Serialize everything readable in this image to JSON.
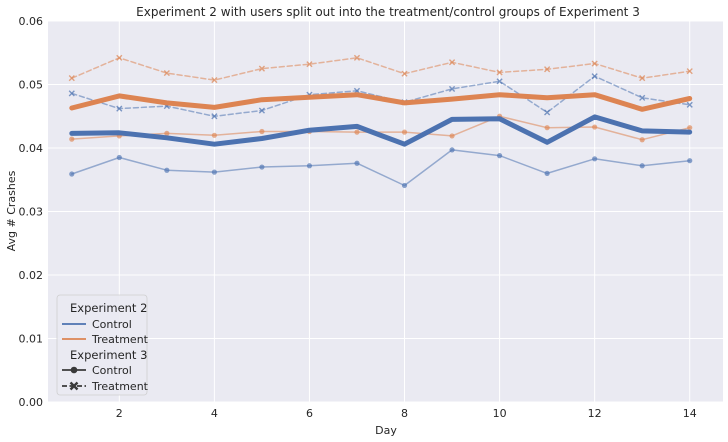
{
  "chart_data": {
    "type": "line",
    "title": "Experiment 2 with users split out into the treatment/control groups of Experiment 3",
    "xlabel": "Day",
    "ylabel": "Avg # Crashes",
    "xlim": [
      0.5,
      14.7
    ],
    "ylim": [
      0,
      0.06
    ],
    "x": [
      1,
      2,
      3,
      4,
      5,
      6,
      7,
      8,
      9,
      10,
      11,
      12,
      13,
      14
    ],
    "x_ticks": [
      2,
      4,
      6,
      8,
      10,
      12,
      14
    ],
    "x_tick_labels": [
      "2",
      "4",
      "6",
      "8",
      "10",
      "12",
      "14"
    ],
    "y_ticks": [
      0,
      0.01,
      0.02,
      0.03,
      0.04,
      0.05,
      0.06
    ],
    "y_tick_labels": [
      "0.00",
      "0.01",
      "0.02",
      "0.03",
      "0.04",
      "0.05",
      "0.06"
    ],
    "grid": true,
    "background": "#eaeaf2",
    "colors": {
      "control": "#4c72b0",
      "treatment": "#dd8452"
    },
    "series": [
      {
        "exp2_group": "Control",
        "exp3_group": "All",
        "style": "thick",
        "values": [
          0.0423,
          0.0424,
          0.0416,
          0.0406,
          0.0415,
          0.0428,
          0.0434,
          0.0406,
          0.0445,
          0.0446,
          0.0409,
          0.0449,
          0.0427,
          0.0425
        ]
      },
      {
        "exp2_group": "Treatment",
        "exp3_group": "All",
        "style": "thick",
        "values": [
          0.0463,
          0.0482,
          0.0471,
          0.0464,
          0.0476,
          0.048,
          0.0484,
          0.0471,
          0.0477,
          0.0484,
          0.0479,
          0.0484,
          0.0461,
          0.0478
        ]
      },
      {
        "exp2_group": "Control",
        "exp3_group": "Control",
        "style": "solid-dot",
        "values": [
          0.0359,
          0.0385,
          0.0365,
          0.0362,
          0.037,
          0.0372,
          0.0376,
          0.0341,
          0.0397,
          0.0388,
          0.036,
          0.0383,
          0.0372,
          0.038
        ]
      },
      {
        "exp2_group": "Treatment",
        "exp3_group": "Control",
        "style": "solid-dot",
        "values": [
          0.0414,
          0.0419,
          0.0423,
          0.042,
          0.0426,
          0.0426,
          0.0425,
          0.0425,
          0.0419,
          0.045,
          0.0432,
          0.0433,
          0.0413,
          0.0432
        ]
      },
      {
        "exp2_group": "Control",
        "exp3_group": "Treatment",
        "style": "dashed-x",
        "values": [
          0.0486,
          0.0462,
          0.0466,
          0.045,
          0.0459,
          0.0484,
          0.049,
          0.0472,
          0.0493,
          0.0505,
          0.0456,
          0.0513,
          0.0479,
          0.0468
        ]
      },
      {
        "exp2_group": "Treatment",
        "exp3_group": "Treatment",
        "style": "dashed-x",
        "values": [
          0.051,
          0.0542,
          0.0518,
          0.0507,
          0.0525,
          0.0532,
          0.0542,
          0.0517,
          0.0535,
          0.0519,
          0.0524,
          0.0533,
          0.051,
          0.0521
        ]
      }
    ],
    "legend": {
      "position": "lower-left",
      "title_exp2": "Experiment 2",
      "exp2_entries": [
        "Control",
        "Treatment"
      ],
      "title_exp3": "Experiment 3",
      "exp3_entries": [
        "Control",
        "Treatment"
      ]
    }
  }
}
